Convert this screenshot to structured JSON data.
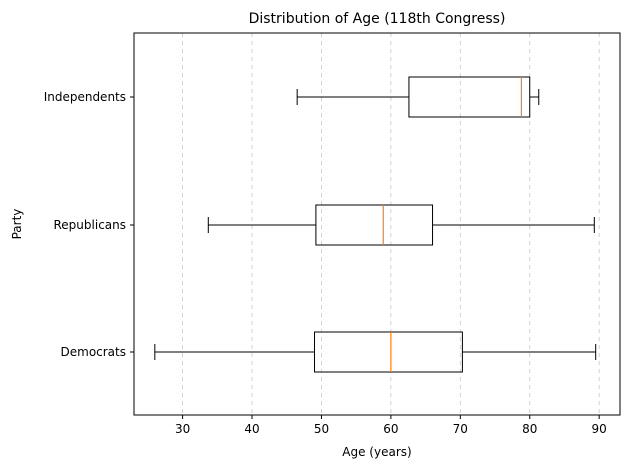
{
  "chart_data": {
    "type": "boxplot",
    "orientation": "horizontal",
    "title": "Distribution of Age (118th Congress)",
    "xlabel": "Age (years)",
    "ylabel": "Party",
    "xlim": [
      23,
      93
    ],
    "xticks": [
      30,
      40,
      50,
      60,
      70,
      80,
      90
    ],
    "grid": "x-dashed",
    "categories": [
      "Democrats",
      "Republicans",
      "Independents"
    ],
    "boxes": [
      {
        "category": "Democrats",
        "whisker_low": 26,
        "q1": 49,
        "median": 60,
        "q3": 70.3,
        "whisker_high": 89.5
      },
      {
        "category": "Republicans",
        "whisker_low": 33.7,
        "q1": 49.2,
        "median": 58.9,
        "q3": 66,
        "whisker_high": 89.3
      },
      {
        "category": "Independents",
        "whisker_low": 46.5,
        "q1": 62.6,
        "median": 78.8,
        "q3": 80,
        "whisker_high": 81.3
      }
    ],
    "colors": {
      "box": "#000000",
      "median": "#ff7f0e",
      "grid": "#b0b0b0"
    }
  }
}
